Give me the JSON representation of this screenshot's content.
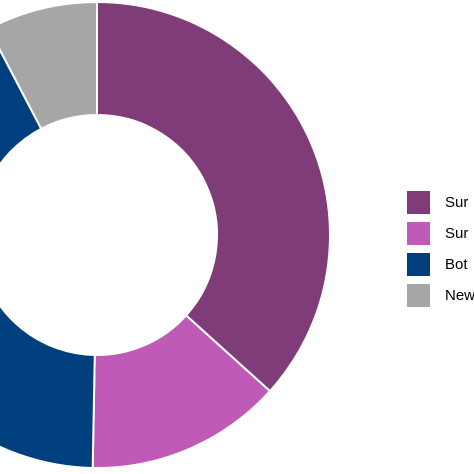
{
  "chart_data": {
    "type": "pie",
    "donut": true,
    "title": "",
    "legend_position": "right",
    "slices": [
      {
        "label": "Sur",
        "value": 31.0,
        "color": "#7f3c78"
      },
      {
        "label": "Sur",
        "value": 11.5,
        "color": "#c05ab7"
      },
      {
        "label": "Bot",
        "value": 35.5,
        "color": "#003f7d"
      },
      {
        "label": "New",
        "value": 6.5,
        "color": "#a6a6a6"
      }
    ]
  }
}
